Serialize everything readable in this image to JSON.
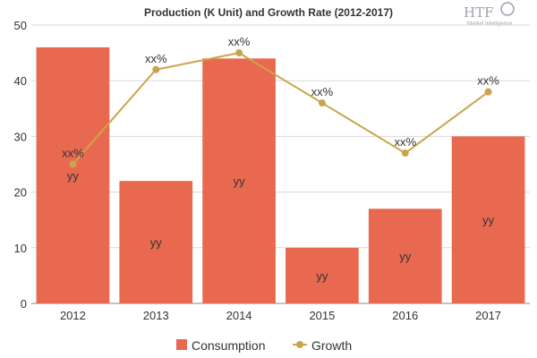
{
  "chart_data": {
    "type": "bar",
    "title": "Production (K Unit) and Growth Rate (2012-2017)",
    "categories": [
      "2012",
      "2013",
      "2014",
      "2015",
      "2016",
      "2017"
    ],
    "ylim": [
      0,
      50
    ],
    "yticks": [
      0,
      10,
      20,
      30,
      40,
      50
    ],
    "grid": true,
    "legend_position": "bottom",
    "series": [
      {
        "name": "Consumption",
        "type": "bar",
        "color": "#e8694f",
        "values": [
          46,
          22,
          44,
          10,
          17,
          30
        ],
        "labels": [
          "yy",
          "yy",
          "yy",
          "yy",
          "yy",
          "yy"
        ]
      },
      {
        "name": "Growth",
        "type": "line",
        "color": "#c9a54a",
        "values": [
          25,
          42,
          45,
          36,
          27,
          38
        ],
        "labels": [
          "xx%",
          "xx%",
          "xx%",
          "xx%",
          "xx%",
          "xx%"
        ]
      }
    ]
  },
  "logo": {
    "text": "HTF",
    "subtext": "Market Intelligence"
  }
}
